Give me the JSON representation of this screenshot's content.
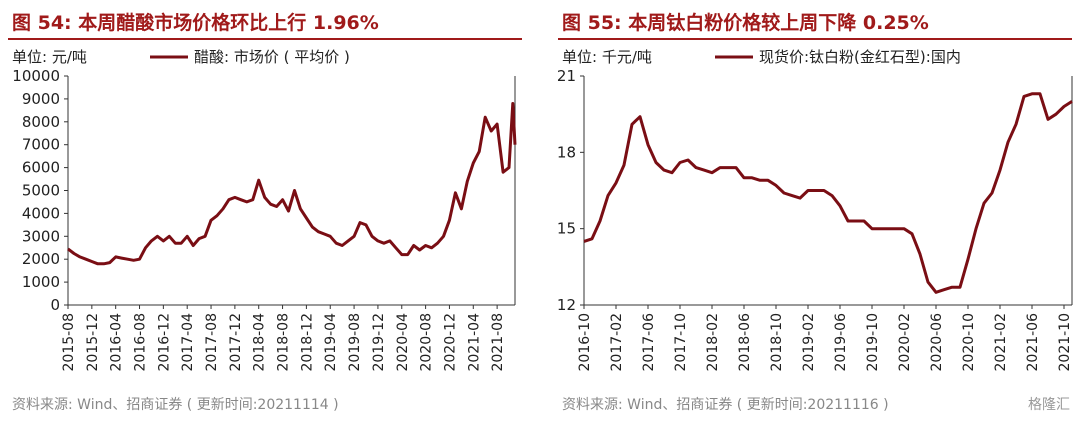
{
  "panels": [
    {
      "title": "图 54:  本周醋酸市场价格环比上行 1.96%",
      "unit": "单位:  元/吨",
      "source": "资料来源:  Wind、招商证券 ( 更新时间:20211114 )",
      "color": "#7a0e14"
    },
    {
      "title": "图 55:  本周钛白粉价格较上周下降 0.25%",
      "unit": "单位:  千元/吨",
      "source": "资料来源:  Wind、招商证券 ( 更新时间:20211116 )",
      "color": "#7a0e14"
    }
  ],
  "watermark": "格隆汇",
  "chart_data": [
    {
      "type": "line",
      "title": "",
      "ylim": [
        0,
        10000
      ],
      "yticks": [
        0,
        1000,
        2000,
        3000,
        4000,
        5000,
        6000,
        7000,
        8000,
        9000,
        10000
      ],
      "xlim": [
        "2015-08",
        "2021-11"
      ],
      "xticks": [
        "2015-08",
        "2015-12",
        "2016-04",
        "2016-08",
        "2016-12",
        "2017-04",
        "2017-08",
        "2017-12",
        "2018-04",
        "2018-08",
        "2018-12",
        "2019-04",
        "2019-08",
        "2019-12",
        "2020-04",
        "2020-08",
        "2020-12",
        "2021-04",
        "2021-08"
      ],
      "grid": false,
      "legend": "top",
      "series": [
        {
          "name": "醋酸:  市场价 ( 平均价 )",
          "points": [
            [
              "2015-08",
              2450
            ],
            [
              "2015-09",
              2250
            ],
            [
              "2015-10",
              2100
            ],
            [
              "2015-11",
              2000
            ],
            [
              "2015-12",
              1900
            ],
            [
              "2016-01",
              1800
            ],
            [
              "2016-02",
              1800
            ],
            [
              "2016-03",
              1850
            ],
            [
              "2016-04",
              2100
            ],
            [
              "2016-05",
              2050
            ],
            [
              "2016-06",
              2000
            ],
            [
              "2016-07",
              1950
            ],
            [
              "2016-08",
              2000
            ],
            [
              "2016-09",
              2500
            ],
            [
              "2016-10",
              2800
            ],
            [
              "2016-11",
              3000
            ],
            [
              "2016-12",
              2800
            ],
            [
              "2017-01",
              3000
            ],
            [
              "2017-02",
              2700
            ],
            [
              "2017-03",
              2700
            ],
            [
              "2017-04",
              3000
            ],
            [
              "2017-05",
              2600
            ],
            [
              "2017-06",
              2900
            ],
            [
              "2017-07",
              3000
            ],
            [
              "2017-08",
              3700
            ],
            [
              "2017-09",
              3900
            ],
            [
              "2017-10",
              4200
            ],
            [
              "2017-11",
              4600
            ],
            [
              "2017-12",
              4700
            ],
            [
              "2018-01",
              4600
            ],
            [
              "2018-02",
              4500
            ],
            [
              "2018-03",
              4600
            ],
            [
              "2018-04",
              5450
            ],
            [
              "2018-05",
              4700
            ],
            [
              "2018-06",
              4400
            ],
            [
              "2018-07",
              4300
            ],
            [
              "2018-08",
              4600
            ],
            [
              "2018-09",
              4100
            ],
            [
              "2018-10",
              5000
            ],
            [
              "2018-11",
              4200
            ],
            [
              "2018-12",
              3800
            ],
            [
              "2019-01",
              3400
            ],
            [
              "2019-02",
              3200
            ],
            [
              "2019-03",
              3100
            ],
            [
              "2019-04",
              3000
            ],
            [
              "2019-05",
              2700
            ],
            [
              "2019-06",
              2600
            ],
            [
              "2019-07",
              2800
            ],
            [
              "2019-08",
              3000
            ],
            [
              "2019-09",
              3600
            ],
            [
              "2019-10",
              3500
            ],
            [
              "2019-11",
              3000
            ],
            [
              "2019-12",
              2800
            ],
            [
              "2020-01",
              2700
            ],
            [
              "2020-02",
              2800
            ],
            [
              "2020-03",
              2500
            ],
            [
              "2020-04",
              2200
            ],
            [
              "2020-05",
              2200
            ],
            [
              "2020-06",
              2600
            ],
            [
              "2020-07",
              2400
            ],
            [
              "2020-08",
              2600
            ],
            [
              "2020-09",
              2500
            ],
            [
              "2020-10",
              2700
            ],
            [
              "2020-11",
              3000
            ],
            [
              "2020-12",
              3700
            ],
            [
              "2021-01",
              4900
            ],
            [
              "2021-02",
              4200
            ],
            [
              "2021-03",
              5400
            ],
            [
              "2021-04",
              6200
            ],
            [
              "2021-05",
              6700
            ],
            [
              "2021-06",
              8200
            ],
            [
              "2021-07",
              7600
            ],
            [
              "2021-08",
              7900
            ],
            [
              "2021-09",
              5800
            ],
            [
              "2021-10",
              6000
            ],
            [
              "2021-10-20",
              8800
            ],
            [
              "2021-11",
              7000
            ]
          ]
        }
      ]
    },
    {
      "type": "line",
      "title": "",
      "ylim": [
        12,
        21
      ],
      "yticks": [
        12,
        15,
        18,
        21
      ],
      "xlim": [
        "2016-10",
        "2021-11"
      ],
      "xticks": [
        "2016-10",
        "2017-02",
        "2017-06",
        "2017-10",
        "2018-02",
        "2018-06",
        "2018-10",
        "2019-02",
        "2019-06",
        "2019-10",
        "2020-02",
        "2020-06",
        "2020-10",
        "2021-02",
        "2021-06",
        "2021-10"
      ],
      "grid": false,
      "legend": "top",
      "series": [
        {
          "name": "现货价:钛白粉(金红石型):国内",
          "points": [
            [
              "2016-10",
              14.5
            ],
            [
              "2016-11",
              14.6
            ],
            [
              "2016-12",
              15.3
            ],
            [
              "2017-01",
              16.3
            ],
            [
              "2017-02",
              16.8
            ],
            [
              "2017-03",
              17.5
            ],
            [
              "2017-04",
              19.1
            ],
            [
              "2017-05",
              19.4
            ],
            [
              "2017-06",
              18.3
            ],
            [
              "2017-07",
              17.6
            ],
            [
              "2017-08",
              17.3
            ],
            [
              "2017-09",
              17.2
            ],
            [
              "2017-10",
              17.6
            ],
            [
              "2017-11",
              17.7
            ],
            [
              "2017-12",
              17.4
            ],
            [
              "2018-01",
              17.3
            ],
            [
              "2018-02",
              17.2
            ],
            [
              "2018-03",
              17.4
            ],
            [
              "2018-04",
              17.4
            ],
            [
              "2018-05",
              17.4
            ],
            [
              "2018-06",
              17.0
            ],
            [
              "2018-07",
              17.0
            ],
            [
              "2018-08",
              16.9
            ],
            [
              "2018-09",
              16.9
            ],
            [
              "2018-10",
              16.7
            ],
            [
              "2018-11",
              16.4
            ],
            [
              "2018-12",
              16.3
            ],
            [
              "2019-01",
              16.2
            ],
            [
              "2019-02",
              16.5
            ],
            [
              "2019-03",
              16.5
            ],
            [
              "2019-04",
              16.5
            ],
            [
              "2019-05",
              16.3
            ],
            [
              "2019-06",
              15.9
            ],
            [
              "2019-07",
              15.3
            ],
            [
              "2019-08",
              15.3
            ],
            [
              "2019-09",
              15.3
            ],
            [
              "2019-10",
              15.0
            ],
            [
              "2019-11",
              15.0
            ],
            [
              "2019-12",
              15.0
            ],
            [
              "2020-01",
              15.0
            ],
            [
              "2020-02",
              15.0
            ],
            [
              "2020-03",
              14.8
            ],
            [
              "2020-04",
              14.0
            ],
            [
              "2020-05",
              12.9
            ],
            [
              "2020-06",
              12.5
            ],
            [
              "2020-07",
              12.6
            ],
            [
              "2020-08",
              12.7
            ],
            [
              "2020-09",
              12.7
            ],
            [
              "2020-10",
              13.8
            ],
            [
              "2020-11",
              15.0
            ],
            [
              "2020-12",
              16.0
            ],
            [
              "2021-01",
              16.4
            ],
            [
              "2021-02",
              17.3
            ],
            [
              "2021-03",
              18.4
            ],
            [
              "2021-04",
              19.1
            ],
            [
              "2021-05",
              20.2
            ],
            [
              "2021-06",
              20.3
            ],
            [
              "2021-07",
              20.3
            ],
            [
              "2021-08",
              19.3
            ],
            [
              "2021-09",
              19.5
            ],
            [
              "2021-10",
              19.8
            ],
            [
              "2021-11",
              20.0
            ]
          ]
        }
      ]
    }
  ]
}
